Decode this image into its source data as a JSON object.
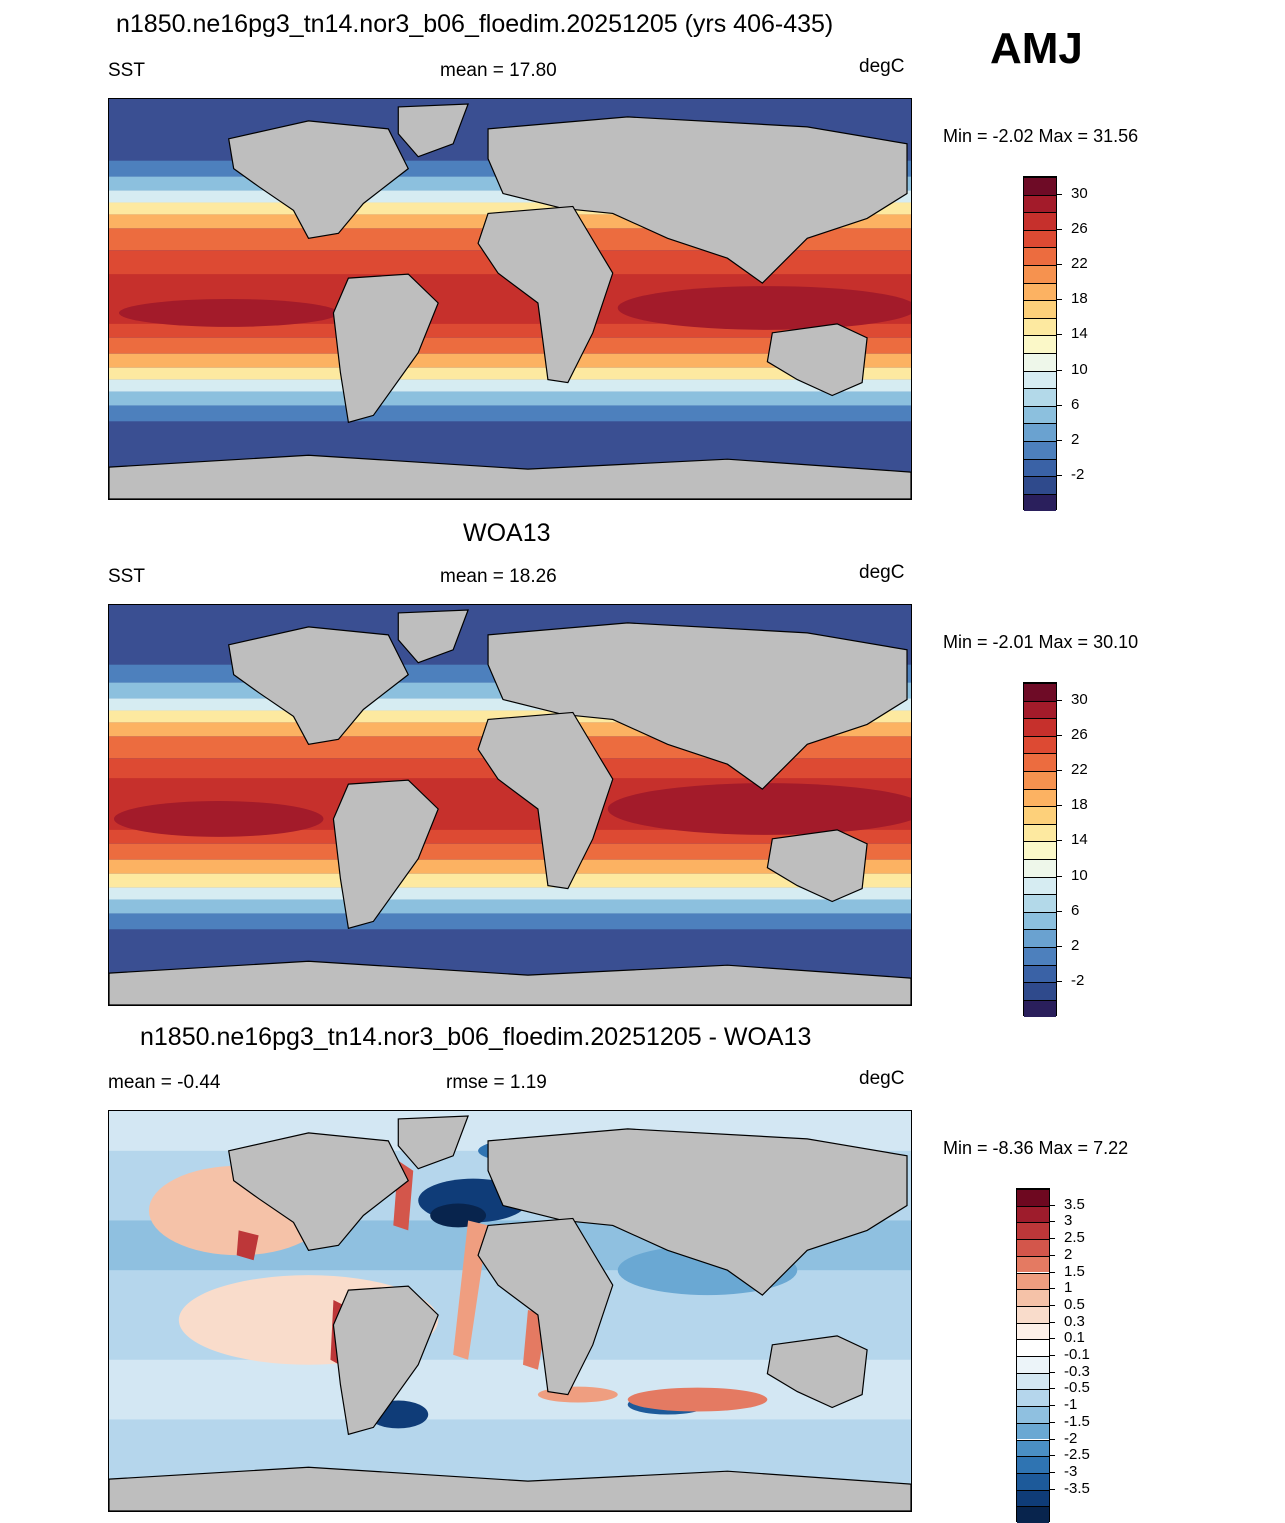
{
  "season": "AMJ",
  "panels": [
    {
      "title": "n1850.ne16pg3_tn14.nor3_b06_floedim.20251205 (yrs 406-435)",
      "left": "SST",
      "center": "mean =  17.80",
      "right": "degC",
      "minmax": "Min =  -2.02 Max =  31.56",
      "colorbar": {
        "colors": [
          "#2a1f5c",
          "#2f4a8c",
          "#3a62a6",
          "#4d80bd",
          "#6aa2d0",
          "#8cc0de",
          "#b3d9e9",
          "#d6ecf2",
          "#eef7ea",
          "#fbf8c8",
          "#fde9a0",
          "#fdd07a",
          "#fcb262",
          "#f6924f",
          "#ec6c3f",
          "#dd4a33",
          "#c6302c",
          "#a31b2a",
          "#6e0b26"
        ],
        "labels": [
          "30",
          "26",
          "22",
          "18",
          "14",
          "10",
          "6",
          "2",
          "-2"
        ]
      }
    },
    {
      "title": "WOA13",
      "left": "SST",
      "center": "mean =  18.26",
      "right": "degC",
      "minmax": "Min =  -2.01 Max =  30.10",
      "colorbar": {
        "colors": [
          "#2a1f5c",
          "#2f4a8c",
          "#3a62a6",
          "#4d80bd",
          "#6aa2d0",
          "#8cc0de",
          "#b3d9e9",
          "#d6ecf2",
          "#eef7ea",
          "#fbf8c8",
          "#fde9a0",
          "#fdd07a",
          "#fcb262",
          "#f6924f",
          "#ec6c3f",
          "#dd4a33",
          "#c6302c",
          "#a31b2a",
          "#6e0b26"
        ],
        "labels": [
          "30",
          "26",
          "22",
          "18",
          "14",
          "10",
          "6",
          "2",
          "-2"
        ]
      }
    },
    {
      "title": "n1850.ne16pg3_tn14.nor3_b06_floedim.20251205 - WOA13",
      "left": "mean =  -0.44",
      "center": "rmse =   1.19",
      "right": "degC",
      "minmax": "Min =  -8.36 Max =   7.22",
      "colorbar": {
        "colors": [
          "#08244d",
          "#0f3c78",
          "#1d5a9a",
          "#2f74b2",
          "#4a8fc4",
          "#6aa8d3",
          "#8fc0e0",
          "#b5d6ec",
          "#d3e7f3",
          "#ecf4f9",
          "#ffffff",
          "#fdf0e8",
          "#f9dccb",
          "#f5c2a8",
          "#ef9e80",
          "#e47a62",
          "#d3564b",
          "#bd3739",
          "#9e1c2c",
          "#6e0820"
        ],
        "labels": [
          "3.5",
          "3",
          "2.5",
          "2",
          "1.5",
          "1",
          "0.5",
          "0.3",
          "0.1",
          "-0.1",
          "-0.3",
          "-0.5",
          "-1",
          "-1.5",
          "-2",
          "-2.5",
          "-3",
          "-3.5"
        ]
      }
    }
  ]
}
